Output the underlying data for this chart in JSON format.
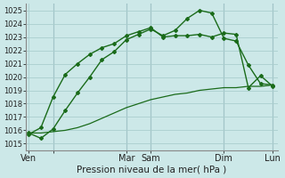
{
  "xlabel": "Pression niveau de la mer( hPa )",
  "ylim": [
    1014.5,
    1025.5
  ],
  "yticks": [
    1015,
    1016,
    1017,
    1018,
    1019,
    1020,
    1021,
    1022,
    1023,
    1024,
    1025
  ],
  "bg_color": "#cce8e8",
  "grid_color": "#aacece",
  "line_color": "#1a6b1a",
  "xlim": [
    -0.1,
    10.2
  ],
  "day_vlines": [
    1.0,
    4.0,
    5.0,
    8.0,
    10.0
  ],
  "vline_color": "#7a9aaa",
  "line1_x": [
    0.0,
    0.5,
    1.0,
    1.5,
    2.0,
    2.5,
    3.0,
    3.5,
    4.0,
    4.5,
    5.0,
    5.5,
    6.0,
    6.5,
    7.0,
    7.5,
    8.0,
    8.5,
    9.0,
    9.5,
    10.0
  ],
  "line1_y": [
    1015.8,
    1015.4,
    1016.1,
    1017.5,
    1018.8,
    1020.0,
    1021.3,
    1021.9,
    1022.8,
    1023.2,
    1023.6,
    1023.1,
    1023.5,
    1024.4,
    1025.0,
    1024.8,
    1022.9,
    1022.7,
    1020.9,
    1019.5,
    1019.4
  ],
  "line2_x": [
    0.0,
    0.5,
    1.0,
    1.5,
    2.0,
    2.5,
    3.0,
    3.5,
    4.0,
    4.5,
    5.0,
    5.5,
    6.0,
    6.5,
    7.0,
    7.5,
    8.0,
    8.5,
    9.0,
    9.5,
    10.0
  ],
  "line2_y": [
    1015.7,
    1016.2,
    1018.5,
    1020.2,
    1021.0,
    1021.7,
    1022.2,
    1022.5,
    1023.1,
    1023.4,
    1023.7,
    1023.0,
    1023.1,
    1023.1,
    1023.2,
    1023.0,
    1023.3,
    1023.2,
    1019.2,
    1020.1,
    1019.3
  ],
  "line3_x": [
    0.0,
    0.5,
    1.0,
    1.5,
    2.0,
    2.5,
    3.0,
    3.5,
    4.0,
    4.5,
    5.0,
    5.5,
    6.0,
    6.5,
    7.0,
    7.5,
    8.0,
    8.5,
    9.0,
    9.5,
    10.0
  ],
  "line3_y": [
    1015.8,
    1015.8,
    1015.9,
    1016.0,
    1016.2,
    1016.5,
    1016.9,
    1017.3,
    1017.7,
    1018.0,
    1018.3,
    1018.5,
    1018.7,
    1018.8,
    1019.0,
    1019.1,
    1019.2,
    1019.2,
    1019.3,
    1019.3,
    1019.4
  ],
  "xtick_positions": [
    0.0,
    1.0,
    4.0,
    5.0,
    8.0,
    10.0
  ],
  "xtick_labels": [
    "Ven",
    "",
    "Mar",
    "Sam",
    "Dim",
    "Lun"
  ]
}
